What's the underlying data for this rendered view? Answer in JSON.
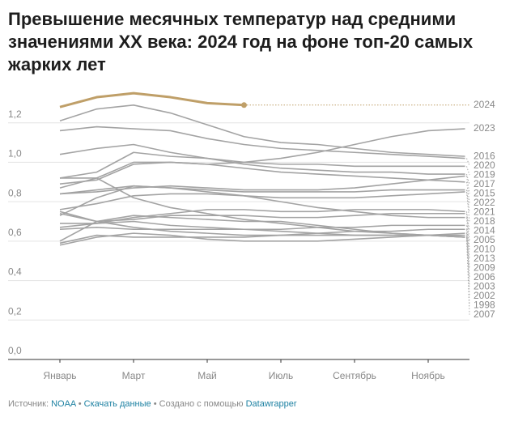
{
  "chart_data": {
    "type": "line",
    "title": "Превышение месячных температур над средними значениями XX века: 2024 год на фоне топ-20 самых жарких лет",
    "categories": [
      "Январь",
      null,
      "Март",
      null,
      "Май",
      null,
      "Июль",
      null,
      "Сентябрь",
      null,
      "Ноябрь",
      null
    ],
    "ylim": [
      0,
      1.4
    ],
    "yticks": [
      {
        "value": 0,
        "label": "0,0"
      },
      {
        "value": 0.2,
        "label": "0,2"
      },
      {
        "value": 0.4,
        "label": "0,4"
      },
      {
        "value": 0.6,
        "label": "0,6"
      },
      {
        "value": 0.8,
        "label": "0,8"
      },
      {
        "value": 1.0,
        "label": "1,0"
      },
      {
        "value": 1.2,
        "label": "1,2"
      }
    ],
    "grid": true,
    "series": [
      {
        "name": "2002",
        "color": "#a3a3a3",
        "values": [
          0.69,
          0.69,
          0.7,
          0.68,
          0.67,
          0.66,
          0.65,
          0.64,
          0.63,
          0.63,
          0.63,
          0.62
        ]
      },
      {
        "name": "1998",
        "color": "#a3a3a3",
        "values": [
          0.6,
          0.7,
          0.73,
          0.72,
          0.71,
          0.7,
          0.7,
          0.68,
          0.66,
          0.64,
          0.63,
          0.62
        ]
      },
      {
        "name": "2003",
        "color": "#a3a3a3",
        "values": [
          0.74,
          0.7,
          0.67,
          0.65,
          0.64,
          0.63,
          0.63,
          0.63,
          0.63,
          0.63,
          0.63,
          0.63
        ]
      },
      {
        "name": "2007",
        "color": "#a3a3a3",
        "values": [
          0.92,
          0.92,
          0.82,
          0.77,
          0.74,
          0.71,
          0.69,
          0.67,
          0.65,
          0.64,
          0.63,
          0.62
        ]
      },
      {
        "name": "2006",
        "color": "#a3a3a3",
        "values": [
          0.58,
          0.62,
          0.64,
          0.63,
          0.61,
          0.6,
          0.6,
          0.6,
          0.61,
          0.62,
          0.63,
          0.64
        ]
      },
      {
        "name": "2009",
        "color": "#a3a3a3",
        "values": [
          0.59,
          0.63,
          0.62,
          0.62,
          0.62,
          0.62,
          0.63,
          0.64,
          0.65,
          0.65,
          0.66,
          0.66
        ]
      },
      {
        "name": "2013",
        "color": "#a3a3a3",
        "values": [
          0.66,
          0.67,
          0.66,
          0.66,
          0.66,
          0.66,
          0.66,
          0.67,
          0.67,
          0.68,
          0.68,
          0.68
        ]
      },
      {
        "name": "2010",
        "color": "#a3a3a3",
        "values": [
          0.73,
          0.82,
          0.88,
          0.87,
          0.85,
          0.83,
          0.8,
          0.77,
          0.75,
          0.73,
          0.72,
          0.72
        ]
      },
      {
        "name": "2005",
        "color": "#a3a3a3",
        "values": [
          0.75,
          0.7,
          0.71,
          0.73,
          0.73,
          0.73,
          0.72,
          0.72,
          0.73,
          0.74,
          0.74,
          0.74
        ]
      },
      {
        "name": "2014",
        "color": "#a3a3a3",
        "values": [
          0.67,
          0.69,
          0.72,
          0.74,
          0.76,
          0.76,
          0.75,
          0.75,
          0.76,
          0.76,
          0.76,
          0.75
        ]
      },
      {
        "name": "2018",
        "color": "#a3a3a3",
        "values": [
          0.76,
          0.79,
          0.83,
          0.84,
          0.84,
          0.83,
          0.82,
          0.82,
          0.82,
          0.83,
          0.84,
          0.85
        ]
      },
      {
        "name": "2021",
        "color": "#a3a3a3",
        "values": [
          0.84,
          0.86,
          0.88,
          0.87,
          0.86,
          0.85,
          0.85,
          0.85,
          0.85,
          0.86,
          0.86,
          0.86
        ]
      },
      {
        "name": "2022",
        "color": "#a3a3a3",
        "values": [
          0.89,
          0.91,
          0.99,
          1.0,
          0.99,
          0.97,
          0.95,
          0.94,
          0.93,
          0.92,
          0.91,
          0.9
        ]
      },
      {
        "name": "2015",
        "color": "#a3a3a3",
        "values": [
          0.84,
          0.85,
          0.87,
          0.88,
          0.87,
          0.86,
          0.86,
          0.86,
          0.87,
          0.89,
          0.91,
          0.93
        ]
      },
      {
        "name": "2017",
        "color": "#a3a3a3",
        "values": [
          0.92,
          0.95,
          1.05,
          1.03,
          1.02,
          0.99,
          0.97,
          0.96,
          0.95,
          0.95,
          0.94,
          0.94
        ]
      },
      {
        "name": "2019",
        "color": "#a3a3a3",
        "values": [
          1.04,
          1.07,
          1.09,
          1.05,
          1.02,
          1.0,
          0.99,
          0.99,
          0.98,
          0.98,
          0.98,
          0.98
        ]
      },
      {
        "name": "2020",
        "color": "#a3a3a3",
        "values": [
          1.16,
          1.18,
          1.17,
          1.16,
          1.12,
          1.09,
          1.07,
          1.06,
          1.05,
          1.04,
          1.03,
          1.02
        ]
      },
      {
        "name": "2016",
        "color": "#a3a3a3",
        "values": [
          1.21,
          1.27,
          1.29,
          1.25,
          1.19,
          1.13,
          1.1,
          1.09,
          1.07,
          1.05,
          1.04,
          1.03
        ]
      },
      {
        "name": "2023",
        "color": "#a3a3a3",
        "values": [
          0.87,
          0.92,
          1.0,
          1.0,
          0.99,
          1.0,
          1.02,
          1.05,
          1.09,
          1.13,
          1.16,
          1.17
        ]
      },
      {
        "name": "2024",
        "color": "#bf9f68",
        "values": [
          1.28,
          1.33,
          1.35,
          1.33,
          1.3,
          1.29,
          null,
          null,
          null,
          null,
          null,
          null
        ]
      }
    ]
  },
  "footer": {
    "source_label": "Источник:",
    "source": "NOAA",
    "separator": "•",
    "download": "Скачать данные",
    "created": "Создано с помощью",
    "tool": "Datawrapper"
  }
}
